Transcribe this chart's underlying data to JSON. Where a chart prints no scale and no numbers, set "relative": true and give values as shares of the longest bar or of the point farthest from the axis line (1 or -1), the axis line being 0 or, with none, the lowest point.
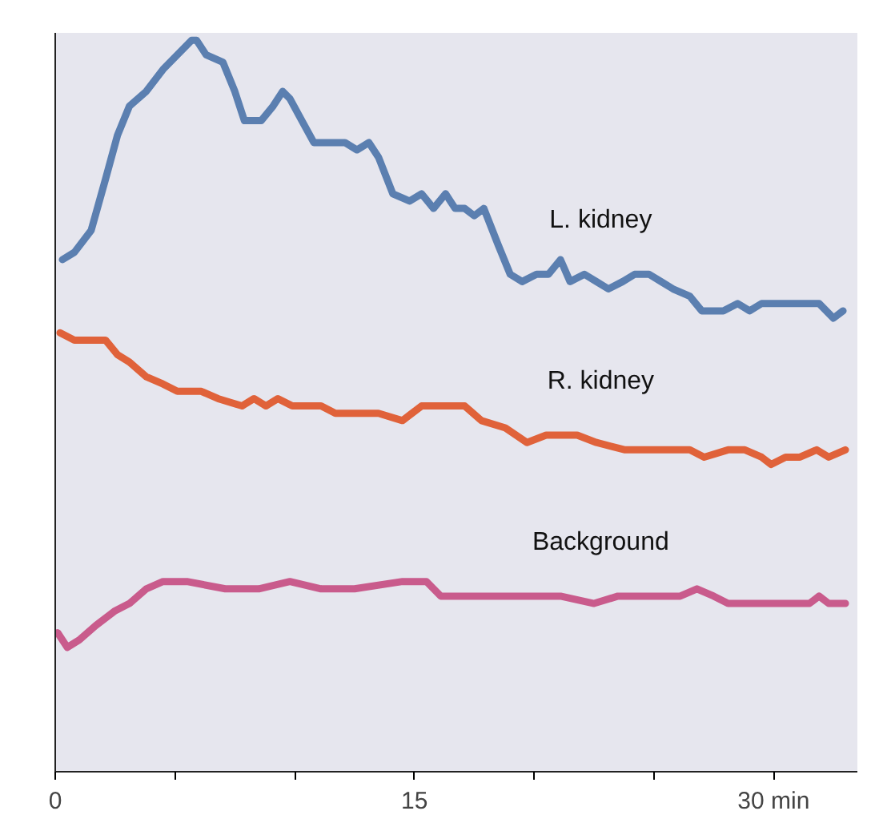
{
  "chart_data": {
    "type": "line",
    "relative": true,
    "xlim": [
      0,
      33.5
    ],
    "xticks": [
      0,
      {
        "value": 5,
        "label": null
      },
      {
        "value": 10,
        "label": null
      },
      15,
      {
        "value": 20,
        "label": null
      },
      {
        "value": 25,
        "label": null
      },
      {
        "value": 30,
        "label": "30 min"
      }
    ],
    "grid": false,
    "marker": "none",
    "line_style": "solid",
    "series": [
      {
        "name": "L. kidney",
        "color": "#5b7fb0",
        "x": [
          0.3,
          0.8,
          1.5,
          2.1,
          2.6,
          3.1,
          3.8,
          4.5,
          5.1,
          5.7,
          5.9,
          6.3,
          7.0,
          7.5,
          7.9,
          8.6,
          9.1,
          9.5,
          9.8,
          10.3,
          10.8,
          11.5,
          12.1,
          12.6,
          13.1,
          13.5,
          14.1,
          14.8,
          15.3,
          15.8,
          16.3,
          16.7,
          17.1,
          17.5,
          17.9,
          18.5,
          19.0,
          19.5,
          20.1,
          20.6,
          21.1,
          21.5,
          22.1,
          22.6,
          23.1,
          23.7,
          24.2,
          24.8,
          25.3,
          25.8,
          26.5,
          27.0,
          27.5,
          27.9,
          28.5,
          29.0,
          29.5,
          30.2,
          31.1,
          31.9,
          32.5,
          32.9
        ],
        "values": [
          0.7,
          0.71,
          0.74,
          0.81,
          0.87,
          0.91,
          0.93,
          0.96,
          0.98,
          1.0,
          1.0,
          0.98,
          0.97,
          0.93,
          0.89,
          0.89,
          0.91,
          0.93,
          0.92,
          0.89,
          0.86,
          0.86,
          0.86,
          0.85,
          0.86,
          0.84,
          0.79,
          0.78,
          0.79,
          0.77,
          0.79,
          0.77,
          0.77,
          0.76,
          0.77,
          0.72,
          0.68,
          0.67,
          0.68,
          0.68,
          0.7,
          0.67,
          0.68,
          0.67,
          0.66,
          0.67,
          0.68,
          0.68,
          0.67,
          0.66,
          0.65,
          0.63,
          0.63,
          0.63,
          0.64,
          0.63,
          0.64,
          0.64,
          0.64,
          0.64,
          0.62,
          0.63
        ]
      },
      {
        "name": "R. kidney",
        "color": "#e0623a",
        "x": [
          0.2,
          0.8,
          1.3,
          1.8,
          2.1,
          2.6,
          3.1,
          3.8,
          4.5,
          5.1,
          6.1,
          6.8,
          7.8,
          8.3,
          8.8,
          9.3,
          9.9,
          10.6,
          11.1,
          11.7,
          12.5,
          13.5,
          14.5,
          15.3,
          16.3,
          17.1,
          17.8,
          18.8,
          19.7,
          20.5,
          21.1,
          21.8,
          22.6,
          23.8,
          25.1,
          26.5,
          27.1,
          28.1,
          28.8,
          29.5,
          29.9,
          30.5,
          31.1,
          31.8,
          32.3,
          33.0
        ],
        "values": [
          0.6,
          0.59,
          0.59,
          0.59,
          0.59,
          0.57,
          0.56,
          0.54,
          0.53,
          0.52,
          0.52,
          0.51,
          0.5,
          0.51,
          0.5,
          0.51,
          0.5,
          0.5,
          0.5,
          0.49,
          0.49,
          0.49,
          0.48,
          0.5,
          0.5,
          0.5,
          0.48,
          0.47,
          0.45,
          0.46,
          0.46,
          0.46,
          0.45,
          0.44,
          0.44,
          0.44,
          0.43,
          0.44,
          0.44,
          0.43,
          0.42,
          0.43,
          0.43,
          0.44,
          0.43,
          0.44
        ]
      },
      {
        "name": "Background",
        "color": "#c95b8c",
        "x": [
          0.1,
          0.5,
          1.0,
          1.7,
          2.5,
          3.1,
          3.8,
          4.5,
          5.5,
          7.1,
          8.5,
          9.8,
          11.1,
          12.5,
          14.5,
          15.5,
          16.1,
          17.1,
          17.8,
          18.8,
          19.8,
          21.1,
          22.5,
          23.5,
          24.5,
          25.3,
          26.1,
          26.8,
          27.5,
          28.1,
          29.1,
          30.5,
          31.5,
          31.9,
          32.3,
          33.0
        ],
        "values": [
          0.19,
          0.17,
          0.18,
          0.2,
          0.22,
          0.23,
          0.25,
          0.26,
          0.26,
          0.25,
          0.25,
          0.26,
          0.25,
          0.25,
          0.26,
          0.26,
          0.24,
          0.24,
          0.24,
          0.24,
          0.24,
          0.24,
          0.23,
          0.24,
          0.24,
          0.24,
          0.24,
          0.25,
          0.24,
          0.23,
          0.23,
          0.23,
          0.23,
          0.24,
          0.23,
          0.23
        ]
      }
    ]
  }
}
